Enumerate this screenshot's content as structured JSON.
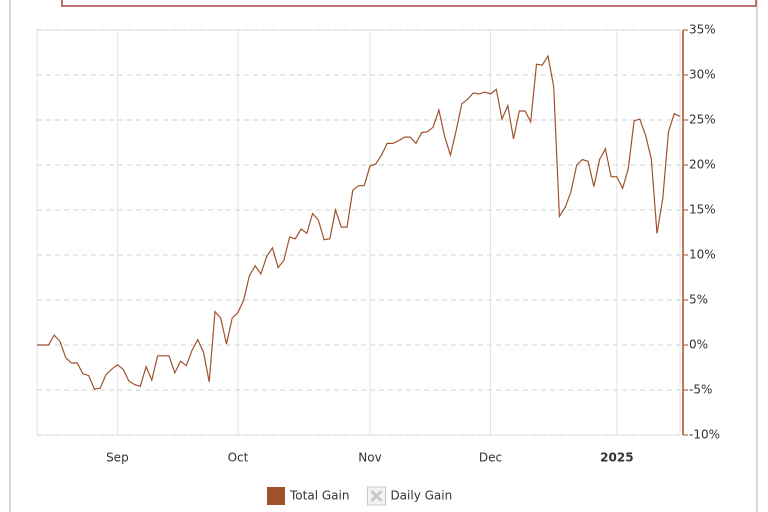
{
  "chart_data": {
    "type": "line",
    "categories": [
      null,
      null,
      null,
      null,
      null,
      null,
      null,
      null,
      null,
      null,
      null,
      null,
      null,
      null,
      "Sep",
      null,
      null,
      null,
      null,
      null,
      null,
      null,
      null,
      null,
      null,
      null,
      null,
      null,
      null,
      null,
      null,
      null,
      null,
      null,
      null,
      "Oct",
      null,
      null,
      null,
      null,
      null,
      null,
      null,
      null,
      null,
      null,
      null,
      null,
      null,
      null,
      null,
      null,
      null,
      null,
      null,
      null,
      null,
      null,
      "Nov",
      null,
      null,
      null,
      null,
      null,
      null,
      null,
      null,
      null,
      null,
      null,
      null,
      null,
      null,
      null,
      null,
      null,
      null,
      null,
      null,
      "Dec",
      null,
      null,
      null,
      null,
      null,
      null,
      null,
      null,
      null,
      null,
      null,
      null,
      null,
      null,
      null,
      null,
      null,
      null,
      null,
      null,
      null,
      "2025",
      null,
      null,
      null,
      null,
      null,
      null,
      null,
      null,
      null,
      null,
      null
    ],
    "series": [
      {
        "name": "Total Gain",
        "color": "#a0522d",
        "visible": true,
        "values": [
          0,
          0,
          0,
          1.1,
          0.4,
          -1.4,
          -2,
          -2,
          -3.2,
          -3.4,
          -4.9,
          -4.8,
          -3.3,
          -2.7,
          -2.2,
          -2.7,
          -4,
          -4.4,
          -4.6,
          -2.4,
          -3.9,
          -1.2,
          -1.2,
          -1.2,
          -3.1,
          -1.8,
          -2.3,
          -0.6,
          0.6,
          -0.8,
          -4.1,
          3.7,
          3,
          0.1,
          3,
          3.6,
          5,
          7.7,
          8.8,
          7.9,
          9.8,
          10.8,
          8.6,
          9.4,
          12,
          11.8,
          12.9,
          12.4,
          14.6,
          13.9,
          11.7,
          11.8,
          15,
          13.1,
          13.1,
          17.2,
          17.7,
          17.7,
          19.9,
          20.1,
          21.1,
          22.4,
          22.4,
          22.7,
          23.1,
          23.1,
          22.4,
          23.6,
          23.7,
          24.2,
          26.1,
          23.2,
          21.1,
          23.8,
          26.8,
          27.3,
          28,
          27.9,
          28.1,
          27.9,
          28.4,
          25.1,
          26.6,
          22.9,
          26,
          26,
          24.8,
          31.2,
          31.1,
          32.1,
          28.7,
          14.3,
          15.3,
          17,
          20,
          20.6,
          20.4,
          17.6,
          20.6,
          21.8,
          18.7,
          18.7,
          17.4,
          19.6,
          24.9,
          25.1,
          23.3,
          20.7,
          12.4,
          16.3,
          23.7,
          25.7,
          25.4
        ]
      },
      {
        "name": "Daily Gain",
        "color": "#c8c8c8",
        "visible": false
      }
    ],
    "ylim": [
      -10,
      35
    ],
    "yticks": [
      {
        "value": -10,
        "label": "-10%"
      },
      {
        "value": -5,
        "label": "-5%"
      },
      {
        "value": 0,
        "label": "0%"
      },
      {
        "value": 5,
        "label": "5%"
      },
      {
        "value": 10,
        "label": "10%"
      },
      {
        "value": 15,
        "label": "15%"
      },
      {
        "value": 20,
        "label": "20%"
      },
      {
        "value": 25,
        "label": "25%"
      },
      {
        "value": 30,
        "label": "30%"
      },
      {
        "value": 35,
        "label": "35%"
      }
    ],
    "y_axis_side": "right",
    "grid": true
  }
}
